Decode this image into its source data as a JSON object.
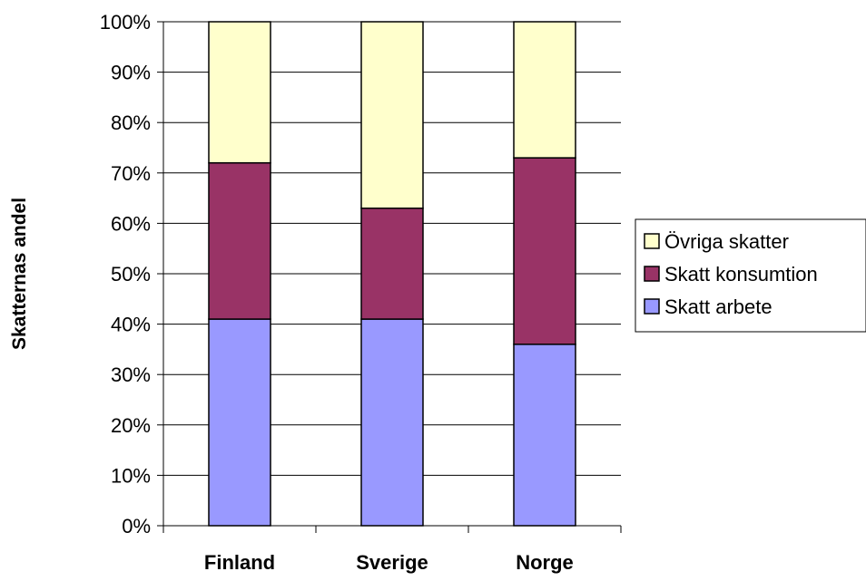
{
  "chart_data": {
    "type": "bar",
    "stacked": true,
    "title": "",
    "xlabel": "",
    "ylabel": "Skatternas andel",
    "ylim": [
      0,
      100
    ],
    "y_tick_labels": [
      "0%",
      "10%",
      "20%",
      "30%",
      "40%",
      "50%",
      "60%",
      "70%",
      "80%",
      "90%",
      "100%"
    ],
    "categories": [
      "Finland",
      "Sverige",
      "Norge"
    ],
    "series": [
      {
        "name": "Skatt arbete",
        "values": [
          41,
          41,
          36
        ],
        "color": "#9999ff"
      },
      {
        "name": "Skatt konsumtion",
        "values": [
          31,
          22,
          37
        ],
        "color": "#993366"
      },
      {
        "name": "Övriga skatter",
        "values": [
          28,
          37,
          27
        ],
        "color": "#ffffcc"
      }
    ],
    "legend": {
      "placement": "right",
      "order": [
        "Övriga skatter",
        "Skatt konsumtion",
        "Skatt arbete"
      ]
    },
    "grid": true,
    "gridline_color": "#000000"
  }
}
